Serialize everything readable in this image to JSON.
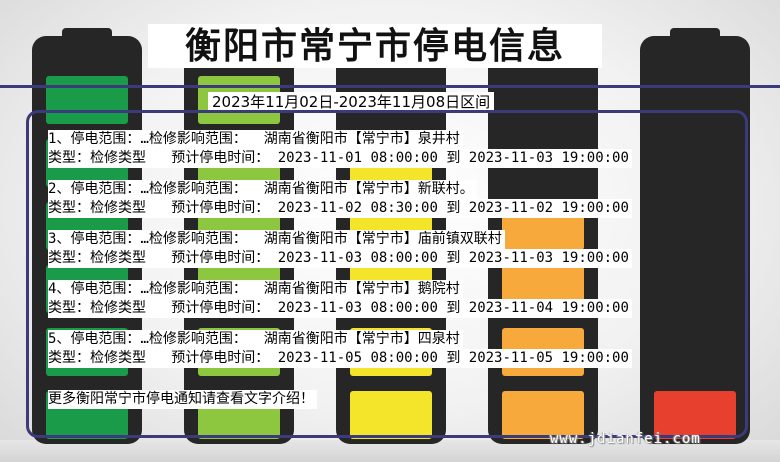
{
  "header": {
    "title": "衡阳市常宁市停电信息",
    "date_range": "2023年11月02日-2023年11月08日区间"
  },
  "labels": {
    "range": "停电范围：",
    "scope": "检修影响范围：",
    "type": "类型：",
    "time": "预计停电时间：",
    "to": "到"
  },
  "records": [
    {
      "index": "1、",
      "range": "…",
      "area": "湖南省衡阳市【常宁市】泉井村",
      "type": "检修类型",
      "start": "2023-11-01 08:00:00",
      "end": "2023-11-03 19:00:00"
    },
    {
      "index": "2、",
      "range": "…",
      "area": "湖南省衡阳市【常宁市】新联村。",
      "type": "检修类型",
      "start": "2023-11-02 08:30:00",
      "end": "2023-11-02 19:00:00"
    },
    {
      "index": "3、",
      "range": "…",
      "area": "湖南省衡阳市【常宁市】庙前镇双联村",
      "type": "检修类型",
      "start": "2023-11-03 08:00:00",
      "end": "2023-11-03 19:00:00"
    },
    {
      "index": "4、",
      "range": "…",
      "area": "湖南省衡阳市【常宁市】鹅院村",
      "type": "检修类型",
      "start": "2023-11-03 08:00:00",
      "end": "2023-11-04 19:00:00"
    },
    {
      "index": "5、",
      "range": "…",
      "area": "湖南省衡阳市【常宁市】四泉村",
      "type": "检修类型",
      "start": "2023-11-05 08:00:00",
      "end": "2023-11-05 19:00:00"
    }
  ],
  "footer": {
    "note": "更多衡阳常宁市停电通知请查看文字介绍！",
    "watermark": "www.jdianfei.com"
  },
  "battery_colors": [
    "#1a9b4a",
    "#8dc63f",
    "#f5e52a",
    "#f7a93b",
    "#e8402f"
  ]
}
